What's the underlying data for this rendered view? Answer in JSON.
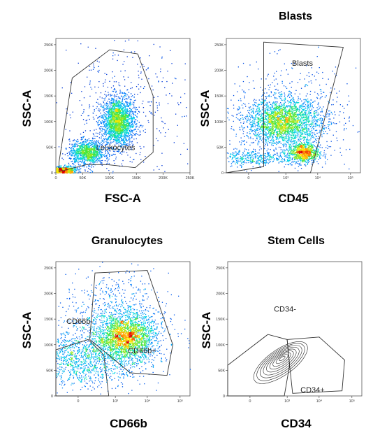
{
  "chart_data": [
    {
      "type": "scatter",
      "title": "",
      "xlabel": "FSC-A",
      "ylabel": "SSC-A",
      "x_ticks": [
        "0",
        "50K",
        "100K",
        "150K",
        "200K",
        "250K"
      ],
      "y_ticks": [
        "0",
        "50K",
        "100K",
        "150K",
        "200K",
        "250K"
      ],
      "xlim": [
        0,
        262144
      ],
      "ylim": [
        0,
        262144
      ],
      "x_scale": "linear",
      "y_scale": "linear",
      "render": "density",
      "populations": [
        {
          "x": 120000,
          "y": 100000,
          "sx": 16000,
          "sy": 24000,
          "weight": 0.5
        },
        {
          "x": 60000,
          "y": 40000,
          "sx": 17000,
          "sy": 12000,
          "weight": 0.25
        },
        {
          "x": 15000,
          "y": 5000,
          "sx": 12000,
          "sy": 4000,
          "weight": 0.15
        },
        {
          "x": 130000,
          "y": 130000,
          "sx": 60000,
          "sy": 70000,
          "weight": 0.1
        }
      ],
      "gates": [
        {
          "label": "Leukocytes",
          "vertices": [
            [
              6000,
              2000
            ],
            [
              60000,
              16000
            ],
            [
              100000,
              16000
            ],
            [
              155000,
              10000
            ],
            [
              190000,
              40000
            ],
            [
              190000,
              150000
            ],
            [
              160000,
              232000
            ],
            [
              105000,
              240000
            ],
            [
              32000,
              185000
            ],
            [
              6000,
              20000
            ]
          ]
        }
      ],
      "grid": false
    },
    {
      "type": "scatter",
      "title": "Blasts",
      "xlabel": "CD45",
      "ylabel": "SSC-A",
      "x_ticks": [
        "0",
        "10³",
        "10⁴",
        "10⁵"
      ],
      "y_ticks": [
        "0",
        "50K",
        "100K",
        "150K",
        "200K",
        "250K"
      ],
      "x_tick_values": [
        0,
        1000,
        10000,
        100000
      ],
      "xlim": [
        -300,
        200000
      ],
      "ylim": [
        0,
        262144
      ],
      "x_scale": "biexponential",
      "y_scale": "linear",
      "render": "density",
      "populations": [
        {
          "x": 800,
          "y": 100000,
          "sx": 0.28,
          "sy": 22000,
          "weight": 0.55
        },
        {
          "x": 3500,
          "y": 40000,
          "sx": 0.12,
          "sy": 10000,
          "weight": 0.2
        },
        {
          "x": 1,
          "y": 30000,
          "sx": 0.35,
          "sy": 8000,
          "weight": 0.1
        },
        {
          "x": 1500,
          "y": 110000,
          "sx": 0.5,
          "sy": 50000,
          "weight": 0.15
        }
      ],
      "gates": [
        {
          "label": "Blasts",
          "vertices": [
            [
              -300,
              0
            ],
            [
              150,
              12000
            ],
            [
              150,
              255000
            ],
            [
              60000,
              245000
            ],
            [
              6000,
              0
            ]
          ]
        }
      ],
      "grid": false
    },
    {
      "type": "scatter",
      "title": "Granulocytes",
      "xlabel": "CD66b",
      "ylabel": "SSC-A",
      "x_ticks": [
        "0",
        "10³",
        "10⁴",
        "10⁵"
      ],
      "y_ticks": [
        "0",
        "50K",
        "100K",
        "150K",
        "200K",
        "250K"
      ],
      "x_tick_values": [
        0,
        1000,
        10000,
        100000
      ],
      "xlim": [
        -300,
        200000
      ],
      "ylim": [
        0,
        262144
      ],
      "x_scale": "biexponential",
      "y_scale": "linear",
      "render": "density",
      "populations": [
        {
          "x": 2200,
          "y": 115000,
          "sx": 0.22,
          "sy": 22000,
          "weight": 0.45
        },
        {
          "x": 10,
          "y": 75000,
          "sx": 0.5,
          "sy": 28000,
          "weight": 0.35
        },
        {
          "x": 1000,
          "y": 150000,
          "sx": 0.4,
          "sy": 45000,
          "weight": 0.2
        }
      ],
      "gates": [
        {
          "label": "CD66b+",
          "vertices": [
            [
              100,
              110000
            ],
            [
              180,
              240000
            ],
            [
              10000,
              245000
            ],
            [
              60000,
              100000
            ],
            [
              40000,
              40000
            ],
            [
              3000,
              45000
            ]
          ]
        },
        {
          "label": "CD66b-",
          "vertices": [
            [
              -300,
              90000
            ],
            [
              80,
              110000
            ],
            [
              400,
              80000
            ],
            [
              600,
              0
            ],
            [
              -300,
              0
            ]
          ]
        }
      ],
      "grid": false
    },
    {
      "type": "scatter",
      "title": "Stem Cells",
      "xlabel": "CD34",
      "ylabel": "SSC-A",
      "x_ticks": [
        "0",
        "10³",
        "10⁴",
        "10⁵"
      ],
      "y_ticks": [
        "0",
        "50K",
        "100K",
        "150K",
        "200K",
        "250K"
      ],
      "x_tick_values": [
        0,
        1000,
        10000,
        100000
      ],
      "xlim": [
        -300,
        200000
      ],
      "ylim": [
        0,
        262144
      ],
      "x_scale": "biexponential",
      "y_scale": "linear",
      "render": "contour",
      "populations": [
        {
          "x": 600,
          "y": 65000,
          "sx": 0.3,
          "sy": 18000,
          "weight": 1.0
        }
      ],
      "gates": [
        {
          "label": "CD34-",
          "vertices": [
            [
              -300,
              60000
            ],
            [
              200,
              120000
            ],
            [
              1000,
              110000
            ],
            [
              1200,
              60000
            ],
            [
              800,
              0
            ],
            [
              -300,
              0
            ]
          ]
        },
        {
          "label": "CD34+",
          "vertices": [
            [
              1200,
              60000
            ],
            [
              1000,
              110000
            ],
            [
              10000,
              115000
            ],
            [
              60000,
              70000
            ],
            [
              50000,
              10000
            ],
            [
              1500,
              5000
            ]
          ]
        }
      ],
      "grid": false
    }
  ]
}
